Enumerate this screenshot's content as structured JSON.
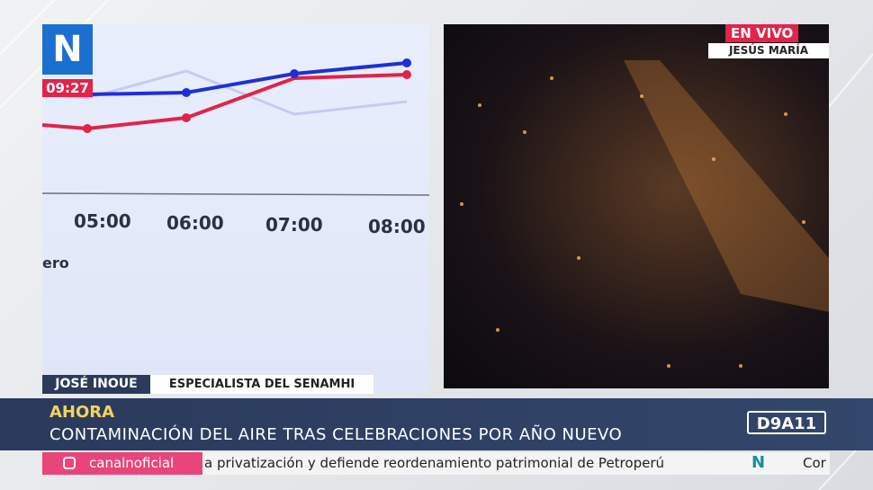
{
  "clock": "09:27",
  "left_panel": {
    "time_labels": [
      "05:00",
      "06:00",
      "07:00",
      "08:00"
    ],
    "legend_fragment": "ero"
  },
  "live_badge": {
    "label": "EN VIVO",
    "location": "JESÚS MARÍA"
  },
  "lower_third": {
    "name": "JOSÉ INOUE",
    "role": "ESPECIALISTA DEL SENAMHI"
  },
  "headline": {
    "kicker": "AHORA",
    "title": "CONTAMINACIÓN DEL AIRE TRAS CELEBRACIONES POR AÑO NUEVO",
    "program": "D9A11"
  },
  "ticker": {
    "handle": "canalnoficial",
    "text": "a privatización y defiende reordenamiento patrimonial de Petroperú",
    "next": "Cor"
  }
}
